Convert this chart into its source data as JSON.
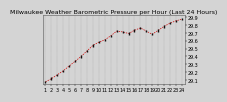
{
  "title": "Milwaukee Weather Barometric Pressure per Hour (Last 24 Hours)",
  "x_values": [
    0,
    1,
    2,
    3,
    4,
    5,
    6,
    7,
    8,
    9,
    10,
    11,
    12,
    13,
    14,
    15,
    16,
    17,
    18,
    19,
    20,
    21,
    22,
    23
  ],
  "y_values": [
    29.08,
    29.12,
    29.17,
    29.22,
    29.28,
    29.34,
    29.4,
    29.47,
    29.54,
    29.58,
    29.61,
    29.66,
    29.72,
    29.71,
    29.69,
    29.73,
    29.76,
    29.72,
    29.68,
    29.73,
    29.78,
    29.82,
    29.85,
    29.87
  ],
  "ylim": [
    29.05,
    29.92
  ],
  "xlim": [
    -0.5,
    23.5
  ],
  "line_color": "#cc0000",
  "marker_color": "#111111",
  "bg_color": "#d4d4d4",
  "plot_bg_color": "#d4d4d4",
  "grid_color": "#888888",
  "title_fontsize": 4.5,
  "tick_fontsize": 3.5,
  "ytick_labels": [
    "29.1",
    "29.2",
    "29.3",
    "29.4",
    "29.5",
    "29.6",
    "29.7",
    "29.8",
    "29.9"
  ],
  "ytick_values": [
    29.1,
    29.2,
    29.3,
    29.4,
    29.5,
    29.6,
    29.7,
    29.8,
    29.9
  ],
  "xtick_labels": [
    "1",
    "2",
    "3",
    "4",
    "5",
    "6",
    "7",
    "8",
    "9",
    "10",
    "11",
    "12",
    "13",
    "14",
    "15",
    "16",
    "17",
    "18",
    "19",
    "20",
    "21",
    "22",
    "23",
    "24"
  ]
}
